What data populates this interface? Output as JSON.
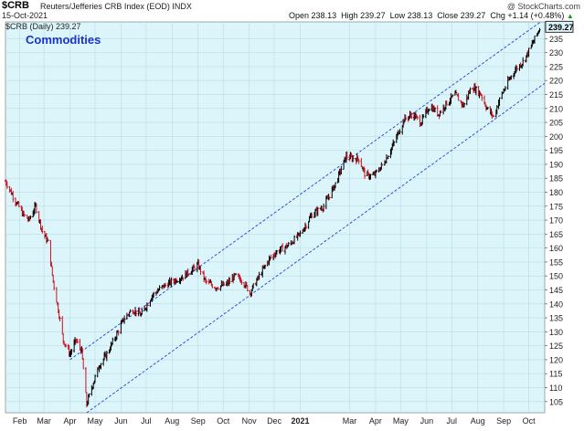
{
  "header": {
    "symbol": "$CRB",
    "name": "Reuters/Jefferies CRB Index (EOD) INDX",
    "site": "@ StockCharts.com",
    "date": "15-Oct-2021",
    "open_label": "Open",
    "open": "238.13",
    "high_label": "High",
    "high": "239.27",
    "low_label": "Low",
    "low": "238.13",
    "close_label": "Close",
    "close": "239.27",
    "chg_label": "Chg",
    "chg": "+1.14 (+0.48%)",
    "chg_arrow": "▲"
  },
  "legend": "$CRB (Daily) 239.27",
  "colors": {
    "background": "#dcf5fa",
    "up": "#000000",
    "down": "#cc1122",
    "channel": "#2244dd",
    "title": "#1a33cc",
    "last_price_box": "#dcf5fa"
  },
  "chart_data": {
    "type": "candlestick",
    "title": "Commodities",
    "ylim": [
      101,
      241
    ],
    "y_ticks": [
      105,
      110,
      115,
      120,
      125,
      130,
      135,
      140,
      145,
      150,
      155,
      160,
      165,
      170,
      175,
      180,
      185,
      190,
      195,
      200,
      205,
      210,
      215,
      220,
      225,
      230,
      235
    ],
    "x_ticks": [
      {
        "label": "Feb",
        "date": "2020-02-01"
      },
      {
        "label": "Mar",
        "date": "2020-03-01"
      },
      {
        "label": "Apr",
        "date": "2020-04-01"
      },
      {
        "label": "May",
        "date": "2020-05-01"
      },
      {
        "label": "Jun",
        "date": "2020-06-01"
      },
      {
        "label": "Jul",
        "date": "2020-07-01"
      },
      {
        "label": "Aug",
        "date": "2020-08-01"
      },
      {
        "label": "Sep",
        "date": "2020-09-01"
      },
      {
        "label": "Oct",
        "date": "2020-10-01"
      },
      {
        "label": "Nov",
        "date": "2020-11-01"
      },
      {
        "label": "Dec",
        "date": "2020-12-01"
      },
      {
        "label": "2021",
        "date": "2021-01-01",
        "bold": true
      },
      {
        "label": "Mar",
        "date": "2021-03-01"
      },
      {
        "label": "Apr",
        "date": "2021-04-01"
      },
      {
        "label": "May",
        "date": "2021-05-01"
      },
      {
        "label": "Jun",
        "date": "2021-06-01"
      },
      {
        "label": "Jul",
        "date": "2021-07-01"
      },
      {
        "label": "Aug",
        "date": "2021-08-01"
      },
      {
        "label": "Sep",
        "date": "2021-09-01"
      },
      {
        "label": "Oct",
        "date": "2021-10-01"
      }
    ],
    "x_range": [
      "2020-01-15",
      "2021-10-20"
    ],
    "last_price": "239.27",
    "series": [
      {
        "date": "2020-01-15",
        "close": 184
      },
      {
        "date": "2020-01-25",
        "close": 178
      },
      {
        "date": "2020-02-05",
        "close": 172
      },
      {
        "date": "2020-02-12",
        "close": 170
      },
      {
        "date": "2020-02-20",
        "close": 175
      },
      {
        "date": "2020-02-28",
        "close": 166
      },
      {
        "date": "2020-03-06",
        "close": 162
      },
      {
        "date": "2020-03-12",
        "close": 148
      },
      {
        "date": "2020-03-18",
        "close": 138
      },
      {
        "date": "2020-03-24",
        "close": 127
      },
      {
        "date": "2020-04-01",
        "close": 122
      },
      {
        "date": "2020-04-08",
        "close": 127
      },
      {
        "date": "2020-04-15",
        "close": 123
      },
      {
        "date": "2020-04-21",
        "close": 104
      },
      {
        "date": "2020-04-28",
        "close": 111
      },
      {
        "date": "2020-05-06",
        "close": 118
      },
      {
        "date": "2020-05-15",
        "close": 122
      },
      {
        "date": "2020-05-25",
        "close": 128
      },
      {
        "date": "2020-06-05",
        "close": 135
      },
      {
        "date": "2020-06-15",
        "close": 138
      },
      {
        "date": "2020-06-25",
        "close": 136
      },
      {
        "date": "2020-07-08",
        "close": 143
      },
      {
        "date": "2020-07-20",
        "close": 146
      },
      {
        "date": "2020-08-01",
        "close": 148
      },
      {
        "date": "2020-08-15",
        "close": 150
      },
      {
        "date": "2020-09-01",
        "close": 154
      },
      {
        "date": "2020-09-10",
        "close": 148
      },
      {
        "date": "2020-09-22",
        "close": 146
      },
      {
        "date": "2020-10-05",
        "close": 147
      },
      {
        "date": "2020-10-15",
        "close": 150
      },
      {
        "date": "2020-10-25",
        "close": 148
      },
      {
        "date": "2020-11-02",
        "close": 144
      },
      {
        "date": "2020-11-15",
        "close": 151
      },
      {
        "date": "2020-11-25",
        "close": 156
      },
      {
        "date": "2020-12-05",
        "close": 159
      },
      {
        "date": "2020-12-18",
        "close": 161
      },
      {
        "date": "2021-01-01",
        "close": 165
      },
      {
        "date": "2021-01-15",
        "close": 172
      },
      {
        "date": "2021-01-29",
        "close": 175
      },
      {
        "date": "2021-02-12",
        "close": 183
      },
      {
        "date": "2021-02-25",
        "close": 193
      },
      {
        "date": "2021-03-05",
        "close": 192
      },
      {
        "date": "2021-03-12",
        "close": 192
      },
      {
        "date": "2021-03-20",
        "close": 186
      },
      {
        "date": "2021-03-30",
        "close": 186
      },
      {
        "date": "2021-04-10",
        "close": 190
      },
      {
        "date": "2021-04-22",
        "close": 197
      },
      {
        "date": "2021-05-05",
        "close": 206
      },
      {
        "date": "2021-05-15",
        "close": 208
      },
      {
        "date": "2021-05-25",
        "close": 205
      },
      {
        "date": "2021-06-05",
        "close": 211
      },
      {
        "date": "2021-06-15",
        "close": 208
      },
      {
        "date": "2021-06-25",
        "close": 212
      },
      {
        "date": "2021-07-05",
        "close": 215
      },
      {
        "date": "2021-07-15",
        "close": 211
      },
      {
        "date": "2021-07-25",
        "close": 218
      },
      {
        "date": "2021-08-05",
        "close": 215
      },
      {
        "date": "2021-08-12",
        "close": 210
      },
      {
        "date": "2021-08-20",
        "close": 207
      },
      {
        "date": "2021-08-28",
        "close": 214
      },
      {
        "date": "2021-09-07",
        "close": 220
      },
      {
        "date": "2021-09-15",
        "close": 224
      },
      {
        "date": "2021-09-25",
        "close": 227
      },
      {
        "date": "2021-10-05",
        "close": 233
      },
      {
        "date": "2021-10-15",
        "close": 239.27
      }
    ],
    "channel": {
      "upper": [
        {
          "date": "2020-04-01",
          "value": 120
        },
        {
          "date": "2021-10-15",
          "value": 241
        }
      ],
      "lower": [
        {
          "date": "2020-04-21",
          "value": 101
        },
        {
          "date": "2021-10-20",
          "value": 219
        }
      ]
    }
  }
}
